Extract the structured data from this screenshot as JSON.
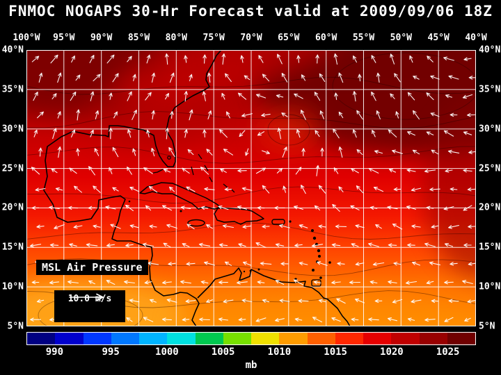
{
  "title": "FNMOC NOGAPS 30-Hr Forecast valid at 2009/09/06 18Z",
  "map": {
    "lon_labels": [
      "100°W",
      "95°W",
      "90°W",
      "85°W",
      "80°W",
      "75°W",
      "70°W",
      "65°W",
      "60°W",
      "55°W",
      "50°W",
      "45°W",
      "40°W"
    ],
    "lat_labels": [
      "40°N",
      "35°N",
      "30°N",
      "25°N",
      "20°N",
      "15°N",
      "10°N",
      "5°N"
    ],
    "field_label": "MSL Air Pressure",
    "vector_reference_label": "10.0 m/s",
    "grid_color": "#ffffff",
    "coastline_color": "#000000",
    "arrow_color": "#ffffff",
    "background_color": "#000000"
  },
  "colorbar": {
    "ticks": [
      "990",
      "995",
      "1000",
      "1005",
      "1010",
      "1015",
      "1020",
      "1025"
    ],
    "unit": "mb",
    "segment_colors": [
      "#000082",
      "#0000cd",
      "#0038ff",
      "#0078ff",
      "#00b4ff",
      "#00e0e0",
      "#00c850",
      "#78e000",
      "#f0e000",
      "#ff9c00",
      "#ff6000",
      "#ff2800",
      "#e60000",
      "#c00000",
      "#980000",
      "#700000"
    ]
  },
  "chart_data": {
    "type": "heatmap",
    "field": "MSL Air Pressure",
    "unit": "mb",
    "model": "FNMOC NOGAPS",
    "forecast_hour": "30-Hr",
    "valid_time": "2009/09/06 18Z",
    "x_ticks": [
      "100°W",
      "95°W",
      "90°W",
      "85°W",
      "80°W",
      "75°W",
      "70°W",
      "65°W",
      "60°W",
      "55°W",
      "50°W",
      "45°W",
      "40°W"
    ],
    "y_ticks": [
      "40°N",
      "35°N",
      "30°N",
      "25°N",
      "20°N",
      "15°N",
      "10°N",
      "5°N"
    ],
    "colorbar_ticks": [
      990,
      995,
      1000,
      1005,
      1010,
      1015,
      1020,
      1025
    ],
    "vector_reference_ms": 10.0,
    "legend_position": "bottom",
    "grid": true,
    "pattern": "pressure decreases from dark red (>1020 mb) in the north/northeast subtropical high toward orange (~1010 mb) in the deep tropics; cyclonic wind circulation near 65W 29N"
  }
}
